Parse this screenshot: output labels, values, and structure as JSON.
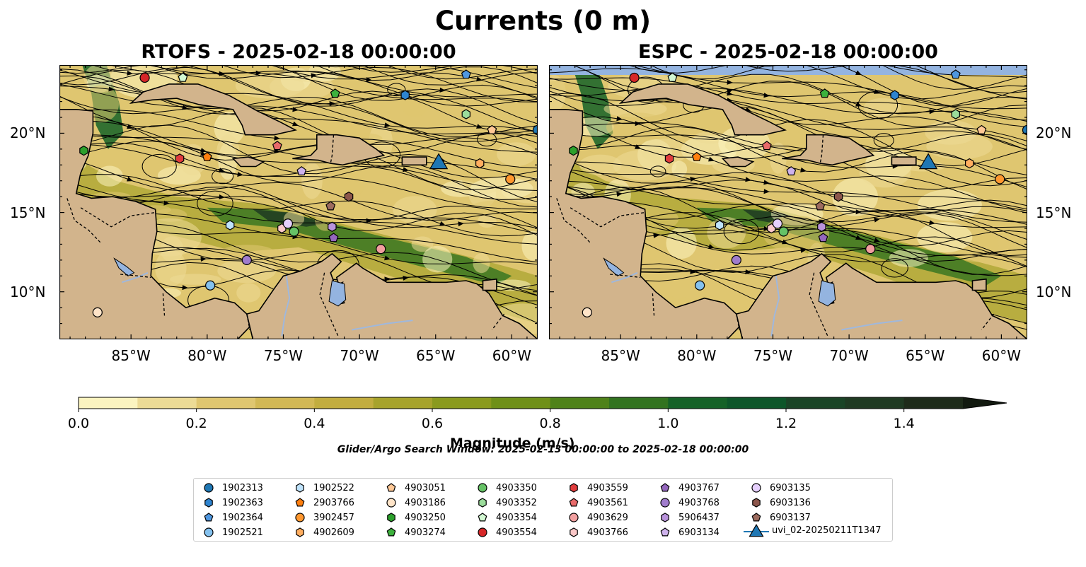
{
  "title": "Currents (0 m)",
  "panels": [
    {
      "title": "RTOFS - 2025-02-18 00:00:00",
      "model": "RTOFS"
    },
    {
      "title": "ESPC - 2025-02-18 00:00:00",
      "model": "ESPC"
    }
  ],
  "map_extent": {
    "lon_min": -89.7,
    "lon_max": -58.3,
    "lat_min": 7.0,
    "lat_max": 24.3
  },
  "axes": {
    "x_ticks": [
      {
        "lon": -85,
        "label": "85°W"
      },
      {
        "lon": -80,
        "label": "80°W"
      },
      {
        "lon": -75,
        "label": "75°W"
      },
      {
        "lon": -70,
        "label": "70°W"
      },
      {
        "lon": -65,
        "label": "65°W"
      },
      {
        "lon": -60,
        "label": "60°W"
      }
    ],
    "y_ticks": [
      {
        "lat": 10,
        "label": "10°N"
      },
      {
        "lat": 15,
        "label": "15°N"
      },
      {
        "lat": 20,
        "label": "20°N"
      }
    ]
  },
  "colorbar": {
    "label": "Magnitude (m/s)",
    "min": 0.0,
    "max": 1.5,
    "extend": "max",
    "ticks": [
      {
        "value": 0.0,
        "label": "0.0"
      },
      {
        "value": 0.2,
        "label": "0.2"
      },
      {
        "value": 0.4,
        "label": "0.4"
      },
      {
        "value": 0.6,
        "label": "0.6"
      },
      {
        "value": 0.8,
        "label": "0.8"
      },
      {
        "value": 1.0,
        "label": "1.0"
      },
      {
        "value": 1.2,
        "label": "1.2"
      },
      {
        "value": 1.4,
        "label": "1.4"
      }
    ],
    "colors": [
      "#fbf4c0",
      "#ecdb96",
      "#dfc670",
      "#d2b855",
      "#c2ad3f",
      "#a7a32c",
      "#8a9a1e",
      "#6f9018",
      "#4f8219",
      "#32731f",
      "#156227",
      "#0d5629",
      "#1a4426",
      "#1f3a22",
      "#1e2b1a"
    ]
  },
  "search_window": "Glider/Argo Search Window: 2025-02-13 00:00:00 to 2025-02-18 00:00:00",
  "colors": {
    "land": "#d2b48c",
    "water": "#94b4e0",
    "boundary": "#000000",
    "river": "#9fb8dd"
  },
  "platforms": [
    {
      "id": "1902313",
      "marker": "circle",
      "color": "#1f77b4",
      "lon": -58.3,
      "lat": 20.2
    },
    {
      "id": "1902363",
      "marker": "hexagon",
      "color": "#2e84d0",
      "lon": -67.0,
      "lat": 22.4
    },
    {
      "id": "1902364",
      "marker": "pentagon",
      "color": "#4f97e0",
      "lon": -63.0,
      "lat": 23.7
    },
    {
      "id": "1902521",
      "marker": "circle",
      "color": "#84c1ee",
      "lon": -79.8,
      "lat": 10.4
    },
    {
      "id": "1902522",
      "marker": "hexagon",
      "color": "#bfe3fb",
      "lon": -78.5,
      "lat": 14.2
    },
    {
      "id": "2903766",
      "marker": "pentagon",
      "color": "#ff7f0e",
      "lon": -80.0,
      "lat": 18.5
    },
    {
      "id": "3902457",
      "marker": "circle",
      "color": "#ff9830",
      "lon": -60.1,
      "lat": 17.1
    },
    {
      "id": "4902609",
      "marker": "hexagon",
      "color": "#ffae60",
      "lon": -62.1,
      "lat": 18.1
    },
    {
      "id": "4903051",
      "marker": "pentagon",
      "color": "#ffc896",
      "lon": -61.3,
      "lat": 20.2
    },
    {
      "id": "4903186",
      "marker": "circle",
      "color": "#ffe4c8",
      "lon": -87.2,
      "lat": 8.7
    },
    {
      "id": "4903250",
      "marker": "hexagon",
      "color": "#2ca02c",
      "lon": -88.1,
      "lat": 18.9
    },
    {
      "id": "4903274",
      "marker": "pentagon",
      "color": "#3db13d",
      "lon": -71.6,
      "lat": 22.5
    },
    {
      "id": "4903350",
      "marker": "circle",
      "color": "#66c266",
      "lon": -74.3,
      "lat": 13.8
    },
    {
      "id": "4903352",
      "marker": "hexagon",
      "color": "#9bdc9b",
      "lon": -63.0,
      "lat": 21.2
    },
    {
      "id": "4903354",
      "marker": "pentagon",
      "color": "#d2f7d2",
      "lon": -81.6,
      "lat": 23.5
    },
    {
      "id": "4903554",
      "marker": "circle",
      "color": "#d62728",
      "lon": -84.1,
      "lat": 23.5
    },
    {
      "id": "4903559",
      "marker": "hexagon",
      "color": "#e03c3d",
      "lon": -81.8,
      "lat": 18.4
    },
    {
      "id": "4903561",
      "marker": "pentagon",
      "color": "#e86a6a",
      "lon": -75.4,
      "lat": 19.2
    },
    {
      "id": "4903629",
      "marker": "circle",
      "color": "#f19f9f",
      "lon": -68.6,
      "lat": 12.7
    },
    {
      "id": "4903766",
      "marker": "hexagon",
      "color": "#fbc8c8",
      "lon": -75.1,
      "lat": 14.0
    },
    {
      "id": "4903767",
      "marker": "pentagon",
      "color": "#9467bd",
      "lon": -71.7,
      "lat": 13.4
    },
    {
      "id": "4903768",
      "marker": "circle",
      "color": "#a07ccc",
      "lon": -77.4,
      "lat": 12.0
    },
    {
      "id": "5906437",
      "marker": "hexagon",
      "color": "#b993dc",
      "lon": -71.8,
      "lat": 14.1
    },
    {
      "id": "6903134",
      "marker": "pentagon",
      "color": "#ceb2ec",
      "lon": -73.8,
      "lat": 17.6
    },
    {
      "id": "6903135",
      "marker": "circle",
      "color": "#e5cffc",
      "lon": -74.7,
      "lat": 14.3
    },
    {
      "id": "6903136",
      "marker": "hexagon",
      "color": "#8c564b",
      "lon": -70.7,
      "lat": 16.0
    },
    {
      "id": "6903137",
      "marker": "pentagon",
      "color": "#9c6b5e",
      "lon": -71.9,
      "lat": 15.4
    },
    {
      "id": "uvi_02-20250211T1347",
      "marker": "triangle",
      "color": "#1f77b4",
      "lon": -64.8,
      "lat": 18.2
    }
  ]
}
